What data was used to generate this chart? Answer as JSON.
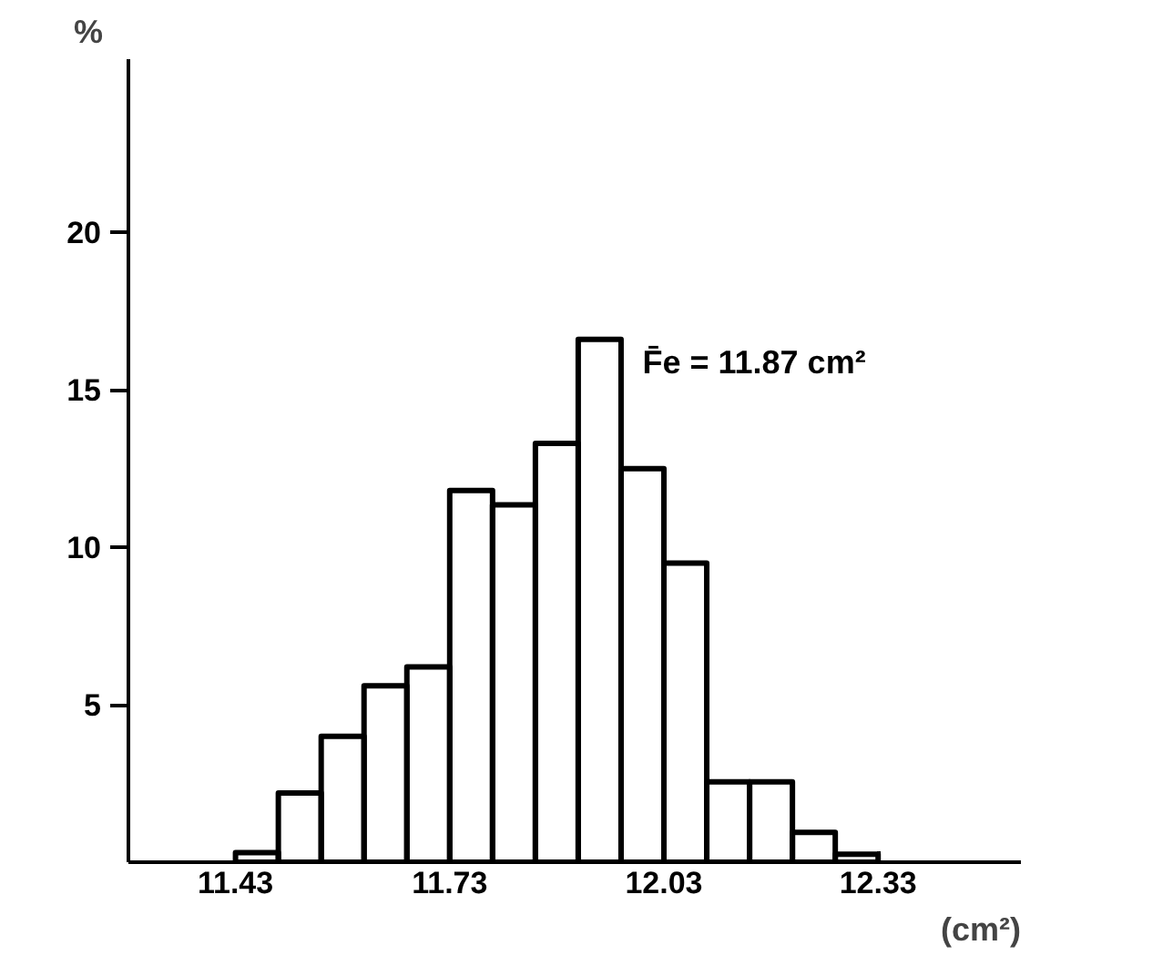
{
  "chart_data": {
    "type": "histogram",
    "xlabel": "(cm²)",
    "ylabel": "%",
    "annotations": [
      "F̄e = 11.87 cm²"
    ],
    "bins": [
      11.43,
      11.49,
      11.55,
      11.61,
      11.67,
      11.73,
      11.79,
      11.85,
      11.91,
      11.97,
      12.03,
      12.09,
      12.15,
      12.21,
      12.27,
      12.33
    ],
    "values": [
      0.3,
      2.2,
      4.0,
      5.6,
      6.2,
      11.8,
      11.35,
      13.3,
      16.6,
      12.5,
      9.5,
      2.55,
      2.55,
      0.95,
      0.25
    ],
    "color": "#000000",
    "xlim": [
      11.28,
      12.53
    ],
    "ylim": [
      0,
      25.5
    ],
    "xticks": [
      11.43,
      11.73,
      12.03,
      12.33
    ],
    "yticks": [
      5,
      10,
      15,
      20
    ],
    "grid": false
  }
}
